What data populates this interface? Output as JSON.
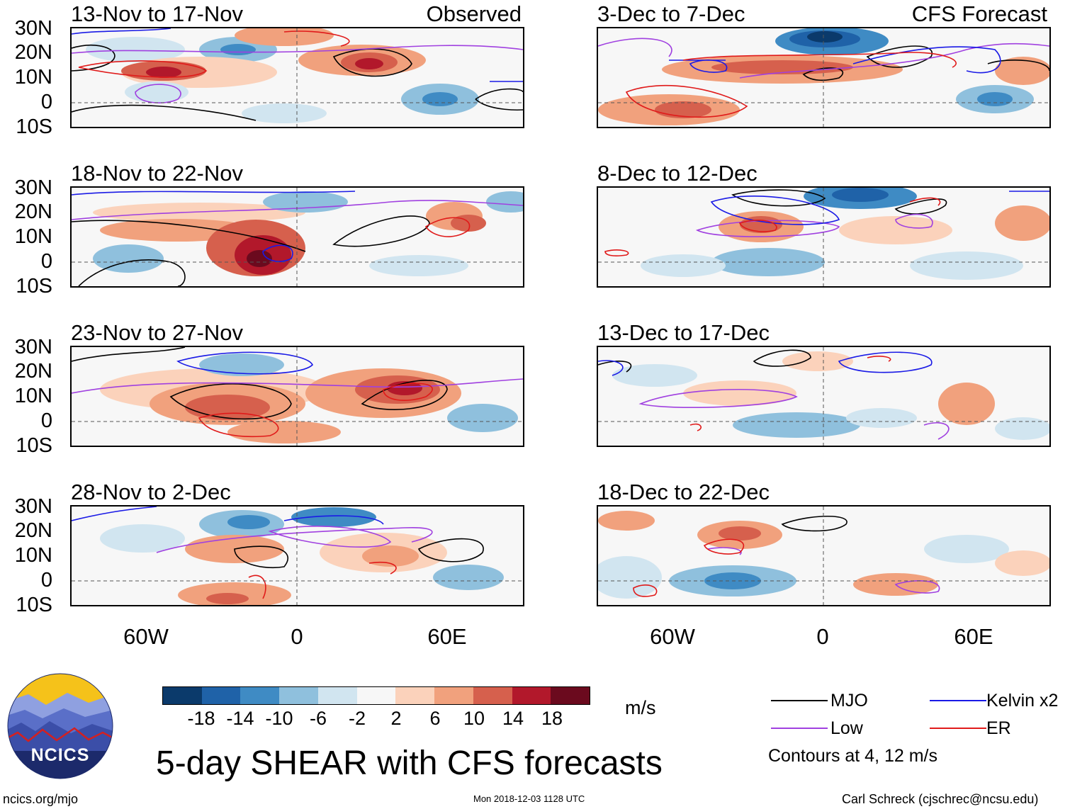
{
  "panels": {
    "left": [
      {
        "title": "13-Nov to 17-Nov",
        "subtitle": "Observed"
      },
      {
        "title": "18-Nov to 22-Nov",
        "subtitle": ""
      },
      {
        "title": "23-Nov to 27-Nov",
        "subtitle": ""
      },
      {
        "title": "28-Nov to 2-Dec",
        "subtitle": ""
      }
    ],
    "right": [
      {
        "title": "3-Dec to 7-Dec",
        "subtitle": "CFS Forecast"
      },
      {
        "title": "8-Dec to 12-Dec",
        "subtitle": ""
      },
      {
        "title": "13-Dec to 17-Dec",
        "subtitle": ""
      },
      {
        "title": "18-Dec to 22-Dec",
        "subtitle": ""
      }
    ]
  },
  "lat_labels": [
    "30N",
    "20N",
    "10N",
    "0",
    "10S"
  ],
  "lon_labels": [
    "60W",
    "0",
    "60E"
  ],
  "colorbar": {
    "colors": [
      "#0b3a6b",
      "#1f62a8",
      "#3f8bc4",
      "#8fc0dd",
      "#d1e5f0",
      "#f7f7f7",
      "#fbd2bb",
      "#f1a17d",
      "#d6604d",
      "#b2182b",
      "#6b0a1e"
    ],
    "labels": [
      "-18",
      "-14",
      "-10",
      "-6",
      "-2",
      "2",
      "6",
      "10",
      "14",
      "18"
    ],
    "units": "m/s"
  },
  "legend": {
    "items": [
      {
        "label": "MJO",
        "color": "#000000"
      },
      {
        "label": "Kelvin x2",
        "color": "#1a1ae6"
      },
      {
        "label": "Low",
        "color": "#a040e0"
      },
      {
        "label": "ER",
        "color": "#e01a1a"
      }
    ],
    "note": "Contours at 4, 12 m/s"
  },
  "logo": {
    "text": "NCICS"
  },
  "footer": {
    "main_title": "5-day SHEAR with CFS forecasts",
    "url": "ncics.org/mjo",
    "timestamp": "Mon 2018-12-03 1128 UTC",
    "credit": "Carl Schreck (cjschrec@ncsu.edu)"
  }
}
